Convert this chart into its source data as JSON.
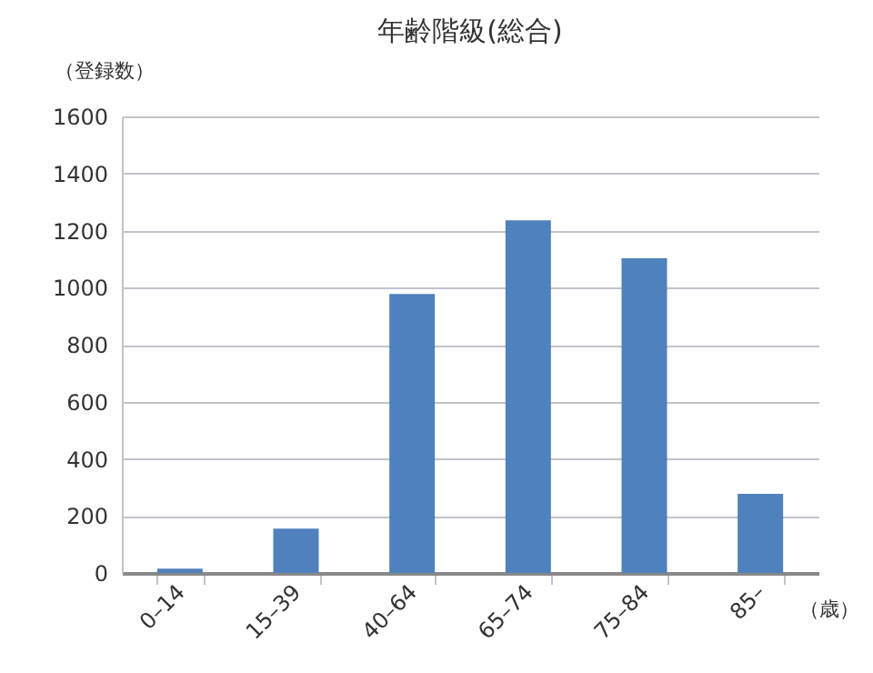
{
  "chart_data": {
    "type": "bar",
    "title": "年齢階級(総合)",
    "ylabel": "（登録数）",
    "xlabel": "（歳）",
    "categories": [
      "0–14",
      "15–39",
      "40–64",
      "65–74",
      "75–84",
      "85–"
    ],
    "values": [
      15,
      155,
      978,
      1236,
      1103,
      277
    ],
    "color": "#4f81bd",
    "ylim": [
      0,
      1600
    ],
    "yticks": [
      0,
      200,
      400,
      600,
      800,
      1000,
      1200,
      1400,
      1600
    ],
    "grid": "y"
  }
}
